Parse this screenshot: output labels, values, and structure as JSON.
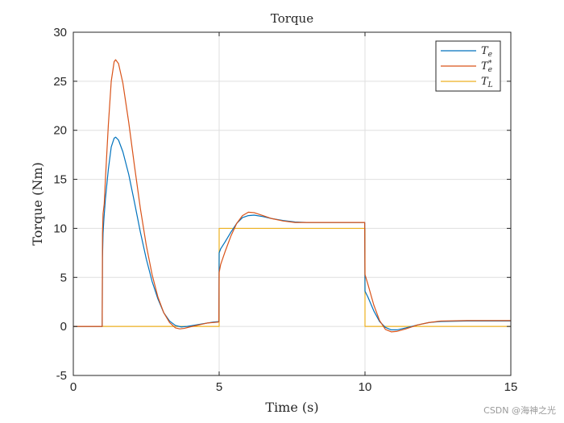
{
  "chart_data": {
    "type": "line",
    "title": "Torque",
    "xlabel": "Time (s)",
    "ylabel": "Torque (Nm)",
    "xlim": [
      0,
      15
    ],
    "ylim": [
      -5,
      30
    ],
    "xticks": [
      0,
      5,
      10,
      15
    ],
    "yticks": [
      -5,
      0,
      5,
      10,
      15,
      20,
      25,
      30
    ],
    "grid": true,
    "legend_position": "top-right",
    "series": [
      {
        "name": "T_e",
        "color": "#0072BD",
        "points": [
          [
            0,
            0
          ],
          [
            0.99,
            0
          ],
          [
            1.0,
            7.0
          ],
          [
            1.02,
            9.5
          ],
          [
            1.05,
            11.0
          ],
          [
            1.1,
            13.0
          ],
          [
            1.2,
            16.0
          ],
          [
            1.3,
            18.3
          ],
          [
            1.4,
            19.2
          ],
          [
            1.45,
            19.3
          ],
          [
            1.55,
            19.0
          ],
          [
            1.7,
            17.8
          ],
          [
            1.9,
            15.5
          ],
          [
            2.1,
            12.6
          ],
          [
            2.3,
            9.6
          ],
          [
            2.5,
            6.9
          ],
          [
            2.7,
            4.6
          ],
          [
            2.9,
            2.8
          ],
          [
            3.1,
            1.4
          ],
          [
            3.3,
            0.55
          ],
          [
            3.5,
            0.1
          ],
          [
            3.7,
            -0.05
          ],
          [
            3.9,
            0.0
          ],
          [
            4.2,
            0.15
          ],
          [
            4.5,
            0.3
          ],
          [
            4.8,
            0.45
          ],
          [
            4.99,
            0.5
          ],
          [
            5.0,
            7.5
          ],
          [
            5.05,
            7.9
          ],
          [
            5.2,
            8.6
          ],
          [
            5.4,
            9.6
          ],
          [
            5.6,
            10.5
          ],
          [
            5.8,
            11.1
          ],
          [
            6.0,
            11.3
          ],
          [
            6.2,
            11.35
          ],
          [
            6.5,
            11.2
          ],
          [
            6.8,
            11.0
          ],
          [
            7.2,
            10.8
          ],
          [
            7.6,
            10.65
          ],
          [
            8.0,
            10.6
          ],
          [
            9.0,
            10.6
          ],
          [
            9.99,
            10.6
          ],
          [
            10.0,
            3.6
          ],
          [
            10.1,
            3.0
          ],
          [
            10.3,
            1.6
          ],
          [
            10.5,
            0.5
          ],
          [
            10.7,
            -0.1
          ],
          [
            10.9,
            -0.35
          ],
          [
            11.1,
            -0.35
          ],
          [
            11.4,
            -0.15
          ],
          [
            11.8,
            0.15
          ],
          [
            12.2,
            0.4
          ],
          [
            12.6,
            0.5
          ],
          [
            13.5,
            0.55
          ],
          [
            15,
            0.55
          ]
        ]
      },
      {
        "name": "T_e^*",
        "color": "#D95319",
        "points": [
          [
            0,
            0
          ],
          [
            0.99,
            0
          ],
          [
            1.0,
            9.5
          ],
          [
            1.02,
            11.5
          ],
          [
            1.06,
            12.5
          ],
          [
            1.1,
            15.0
          ],
          [
            1.2,
            20.5
          ],
          [
            1.3,
            25.0
          ],
          [
            1.4,
            27.0
          ],
          [
            1.45,
            27.2
          ],
          [
            1.55,
            26.8
          ],
          [
            1.7,
            24.8
          ],
          [
            1.9,
            20.8
          ],
          [
            2.1,
            16.3
          ],
          [
            2.3,
            12.0
          ],
          [
            2.5,
            8.3
          ],
          [
            2.7,
            5.3
          ],
          [
            2.9,
            3.0
          ],
          [
            3.1,
            1.4
          ],
          [
            3.3,
            0.4
          ],
          [
            3.5,
            -0.15
          ],
          [
            3.65,
            -0.25
          ],
          [
            3.8,
            -0.2
          ],
          [
            4.0,
            -0.05
          ],
          [
            4.3,
            0.15
          ],
          [
            4.6,
            0.35
          ],
          [
            4.99,
            0.45
          ],
          [
            5.0,
            5.5
          ],
          [
            5.05,
            6.3
          ],
          [
            5.2,
            7.6
          ],
          [
            5.4,
            9.2
          ],
          [
            5.6,
            10.5
          ],
          [
            5.8,
            11.3
          ],
          [
            6.0,
            11.65
          ],
          [
            6.2,
            11.6
          ],
          [
            6.5,
            11.3
          ],
          [
            6.8,
            11.0
          ],
          [
            7.2,
            10.75
          ],
          [
            7.6,
            10.6
          ],
          [
            8.0,
            10.6
          ],
          [
            9.0,
            10.6
          ],
          [
            9.99,
            10.6
          ],
          [
            10.0,
            5.3
          ],
          [
            10.1,
            4.3
          ],
          [
            10.3,
            2.2
          ],
          [
            10.5,
            0.6
          ],
          [
            10.7,
            -0.3
          ],
          [
            10.9,
            -0.55
          ],
          [
            11.1,
            -0.5
          ],
          [
            11.4,
            -0.25
          ],
          [
            11.8,
            0.15
          ],
          [
            12.2,
            0.4
          ],
          [
            12.6,
            0.55
          ],
          [
            13.5,
            0.6
          ],
          [
            15,
            0.6
          ]
        ]
      },
      {
        "name": "T_L",
        "color": "#EDB120",
        "points": [
          [
            0,
            0
          ],
          [
            5,
            0
          ],
          [
            5,
            10
          ],
          [
            10,
            10
          ],
          [
            10,
            0
          ],
          [
            15,
            0
          ]
        ]
      }
    ]
  },
  "watermark": "CSDN @海神之光"
}
